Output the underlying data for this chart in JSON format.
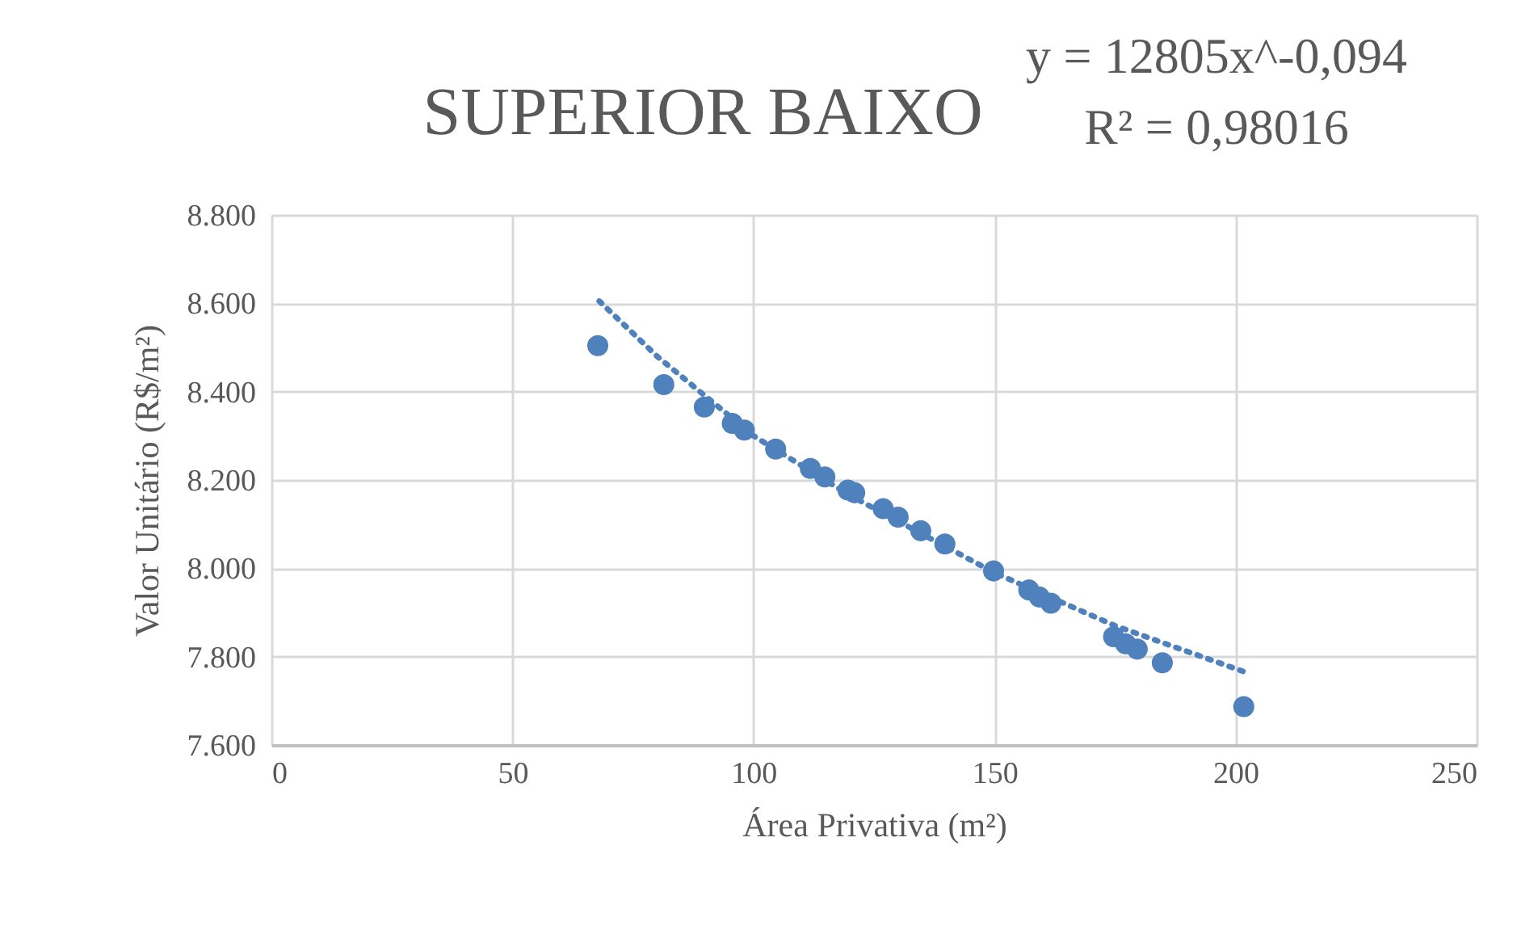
{
  "chart_data": {
    "type": "scatter",
    "title": "SUPERIOR BAIXO",
    "xlabel": "Área Privativa (m²)",
    "ylabel": "Valor Unitário (R$/m²)",
    "annotations": [
      "y = 12805x^-0,094",
      "R² = 0,98016"
    ],
    "series": [
      {
        "color": "#4f81bd",
        "marker": "circle",
        "x": [
          67.7,
          81.4,
          89.8,
          95.6,
          98.1,
          104.6,
          111.8,
          114.8,
          119.6,
          121,
          126.9,
          130,
          134.7,
          139.7,
          149.8,
          157.1,
          159.3,
          161.7,
          174.7,
          177.2,
          179.6,
          184.8,
          201.7
        ],
        "values": [
          8504,
          8416,
          8365,
          8328,
          8313,
          8270,
          8226,
          8207,
          8177,
          8171,
          8135,
          8116,
          8085,
          8055,
          7994,
          7951,
          7935,
          7921,
          7845,
          7829,
          7817,
          7786,
          7687
        ]
      },
      {
        "type": "line",
        "color": "#4f81bd",
        "line_style": "dotted",
        "x": [
          68,
          80,
          100,
          120,
          150,
          175,
          202
        ],
        "values": [
          8605,
          8480,
          8300,
          8165,
          7990,
          7870,
          7765
        ]
      }
    ],
    "xlim": [
      0,
      250
    ],
    "xticks": [
      0,
      50,
      100,
      150,
      200,
      250
    ],
    "ylim": [
      7600,
      8800
    ],
    "yticks": [
      {
        "value": 7600,
        "label": "7.600"
      },
      {
        "value": 7800,
        "label": "7.800"
      },
      {
        "value": 8000,
        "label": "8.000"
      },
      {
        "value": 8200,
        "label": "8.200"
      },
      {
        "value": 8400,
        "label": "8.400"
      },
      {
        "value": 8600,
        "label": "8.600"
      },
      {
        "value": 8800,
        "label": "8.800"
      }
    ],
    "grid": true,
    "legend": false
  }
}
